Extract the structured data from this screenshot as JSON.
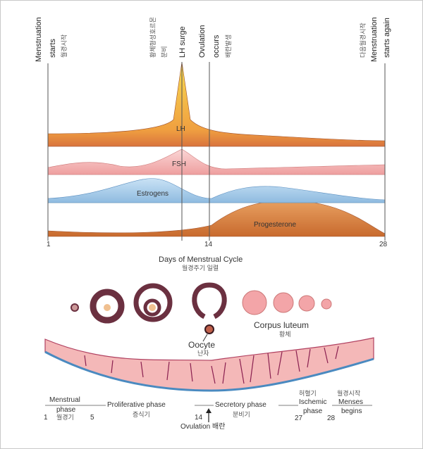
{
  "top_labels": {
    "menstruation_starts_1": "Menstruation",
    "menstruation_starts_2": "starts",
    "menstruation_starts_kr": "월경시작",
    "lh_surge_kr_1": "황체형성호르몬",
    "lh_surge_kr_2": "분비",
    "lh_surge": "LH surge",
    "ovulation_1": "Ovulation",
    "ovulation_2": "occurs",
    "ovulation_kr": "배란발생",
    "next_kr": "다음월경시작",
    "again_1": "Menstruation",
    "again_2": "starts again"
  },
  "hormones": {
    "lh": "LH",
    "fsh": "FSH",
    "estrogens": "Estrogens",
    "progesterone": "Progesterone"
  },
  "colors": {
    "lh": "#d9743e",
    "lh_peak": "#f5c842",
    "fsh": "#f3b3b3",
    "estrogens": "#a9cdea",
    "progesterone": "#e0944e"
  },
  "day_axis": {
    "start": "1",
    "mid": "14",
    "end": "28"
  },
  "axis_title": "Days of Menstrual Cycle",
  "axis_title_kr": "월경주기 일렬",
  "ovary": {
    "oocyte": "Oocyte",
    "oocyte_kr": "난자",
    "corpus_luteum": "Corpus luteum",
    "corpus_luteum_kr": "황체"
  },
  "phases": {
    "menstrual_1": "Menstrual",
    "menstrual_2": "phase",
    "menstrual_kr": "월경기",
    "day1": "1",
    "day5": "5",
    "day14": "14",
    "day27": "27",
    "day28": "28",
    "proliferative": "Proliferative phase",
    "proliferative_kr": "증식기",
    "secretory": "Secretory phase",
    "secretory_kr": "분비기",
    "ischemic_kr": "허혈기",
    "ischemic_1": "Ischemic",
    "ischemic_2": "phase",
    "menses_kr": "월경시작",
    "menses_1": "Menses",
    "menses_2": "begins",
    "ovulation": "Ovulation 배란"
  }
}
